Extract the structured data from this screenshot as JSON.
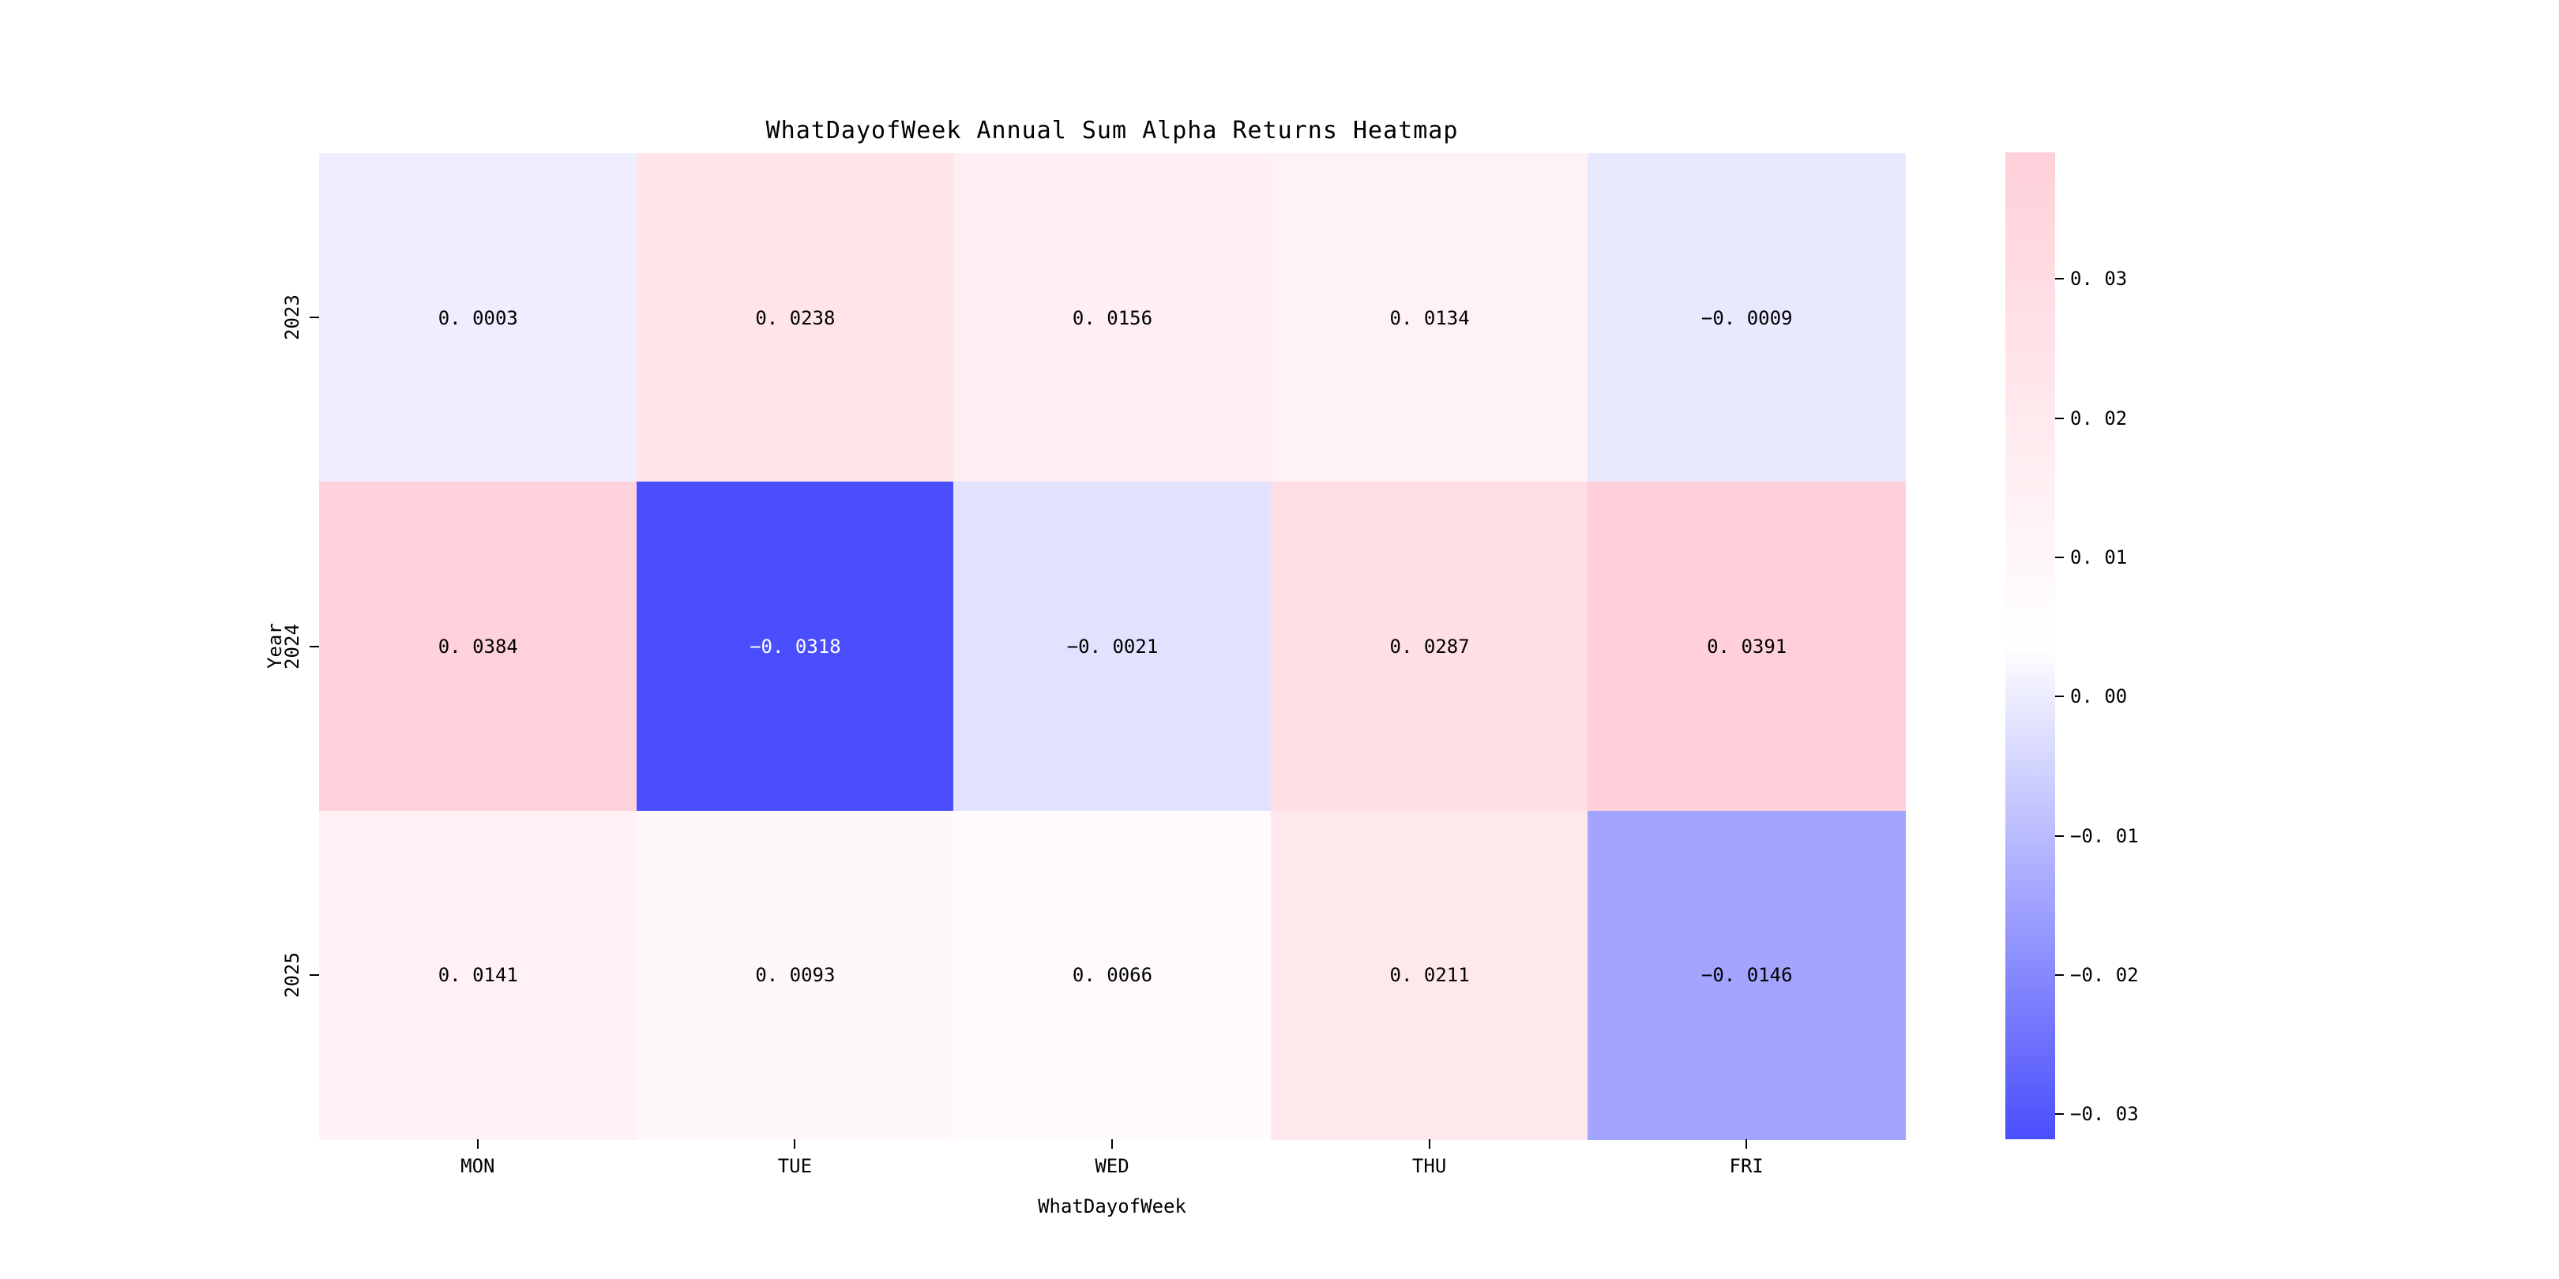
{
  "figure": {
    "background": "#ffffff"
  },
  "chart_data": {
    "type": "heatmap",
    "title": "WhatDayofWeek Annual Sum Alpha Returns Heatmap",
    "xlabel": "WhatDayofWeek",
    "ylabel": "Year",
    "columns": [
      "MON",
      "TUE",
      "WED",
      "THU",
      "FRI"
    ],
    "rows": [
      "2023",
      "2024",
      "2025"
    ],
    "values": [
      [
        0.0003,
        0.0238,
        0.0156,
        0.0134,
        -0.0009
      ],
      [
        0.0384,
        -0.0318,
        -0.0021,
        0.0287,
        0.0391
      ],
      [
        0.0141,
        0.0093,
        0.0066,
        0.0211,
        -0.0146
      ]
    ],
    "vmin": -0.0318,
    "vmax": 0.0391,
    "value_decimals": 4,
    "annotations_shown": true,
    "grid": false,
    "colorbar": {
      "position": "right",
      "ticks": [
        0.03,
        0.02,
        0.01,
        0.0,
        -0.01,
        -0.02,
        -0.03
      ],
      "tick_decimals": 2
    },
    "colormap": {
      "negative_end": "#4a4efc",
      "zero": "#ffffff",
      "positive_end": "#ffd0d9"
    },
    "text_colors": {
      "dark": "#000000",
      "light": "#ffffff"
    }
  }
}
